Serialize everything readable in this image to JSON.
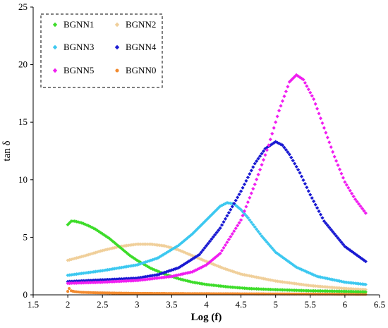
{
  "chart_data": {
    "type": "scatter",
    "xlabel": "Log (f)",
    "ylabel": "tan δ",
    "xlim": [
      1.5,
      6.5
    ],
    "ylim": [
      0,
      25
    ],
    "xticks": [
      "1.5",
      "2",
      "2.5",
      "3",
      "3.5",
      "4",
      "4.5",
      "5",
      "5.5",
      "6",
      "6.5"
    ],
    "yticks": [
      "0",
      "5",
      "10",
      "15",
      "20",
      "25"
    ],
    "grid": false,
    "legend_position": "top-left",
    "series": [
      {
        "name": "BGNN1",
        "color": "#3ddc2a",
        "marker": "diamond",
        "x": [
          2.0,
          2.05,
          2.1,
          2.2,
          2.3,
          2.4,
          2.5,
          2.6,
          2.7,
          2.8,
          2.9,
          3.0,
          3.2,
          3.4,
          3.6,
          3.8,
          4.0,
          4.3,
          4.6,
          5.0,
          5.5,
          6.0,
          6.3
        ],
        "y": [
          6.1,
          6.4,
          6.4,
          6.25,
          6.0,
          5.7,
          5.3,
          4.9,
          4.4,
          3.9,
          3.4,
          3.0,
          2.3,
          1.8,
          1.4,
          1.1,
          0.9,
          0.7,
          0.55,
          0.45,
          0.35,
          0.3,
          0.25
        ]
      },
      {
        "name": "BGNN2",
        "color": "#f0cf9a",
        "marker": "diamond",
        "x": [
          2.0,
          2.25,
          2.5,
          2.75,
          3.0,
          3.2,
          3.4,
          3.6,
          3.8,
          4.0,
          4.25,
          4.5,
          5.0,
          5.5,
          6.0,
          6.3
        ],
        "y": [
          3.0,
          3.4,
          3.85,
          4.2,
          4.4,
          4.4,
          4.25,
          3.9,
          3.4,
          2.9,
          2.3,
          1.8,
          1.2,
          0.8,
          0.55,
          0.45
        ]
      },
      {
        "name": "BGNN3",
        "color": "#3cc8f0",
        "marker": "diamond",
        "x": [
          2.0,
          2.5,
          3.0,
          3.3,
          3.6,
          3.8,
          4.0,
          4.1,
          4.2,
          4.3,
          4.4,
          4.5,
          4.6,
          4.8,
          5.0,
          5.3,
          5.6,
          6.0,
          6.3
        ],
        "y": [
          1.7,
          2.1,
          2.6,
          3.2,
          4.3,
          5.3,
          6.5,
          7.1,
          7.7,
          8.0,
          7.9,
          7.4,
          6.7,
          5.1,
          3.7,
          2.4,
          1.6,
          1.1,
          0.9
        ]
      },
      {
        "name": "BGNN4",
        "color": "#1a1ad2",
        "marker": "diamond",
        "x": [
          2.0,
          2.5,
          3.0,
          3.3,
          3.6,
          3.9,
          4.2,
          4.5,
          4.7,
          4.85,
          5.0,
          5.1,
          5.2,
          5.35,
          5.5,
          5.7,
          6.0,
          6.3
        ],
        "y": [
          1.15,
          1.3,
          1.45,
          1.75,
          2.35,
          3.5,
          5.8,
          9.0,
          11.4,
          12.7,
          13.3,
          13.0,
          12.2,
          10.6,
          8.7,
          6.4,
          4.2,
          2.9
        ]
      },
      {
        "name": "BGNN5",
        "color": "#f01ef0",
        "marker": "diamond",
        "x": [
          2.0,
          2.5,
          3.0,
          3.5,
          3.8,
          4.0,
          4.2,
          4.5,
          4.7,
          4.9,
          5.05,
          5.2,
          5.3,
          5.4,
          5.55,
          5.7,
          5.85,
          6.0,
          6.15,
          6.3
        ],
        "y": [
          1.0,
          1.1,
          1.25,
          1.6,
          2.0,
          2.6,
          3.6,
          6.5,
          9.6,
          13.0,
          16.0,
          18.5,
          19.1,
          18.7,
          17.0,
          14.5,
          12.0,
          9.8,
          8.3,
          7.1
        ]
      },
      {
        "name": "BGNN0",
        "color": "#f28a2e",
        "marker": "circle",
        "x": [
          2.0,
          2.02,
          2.05,
          2.1,
          2.2,
          2.4,
          2.7,
          3.0,
          3.5,
          4.0,
          4.5,
          5.0,
          5.5,
          6.0,
          6.3
        ],
        "y": [
          0.3,
          0.55,
          0.35,
          0.28,
          0.22,
          0.18,
          0.15,
          0.13,
          0.11,
          0.1,
          0.09,
          0.08,
          0.07,
          0.06,
          0.05
        ]
      }
    ]
  }
}
